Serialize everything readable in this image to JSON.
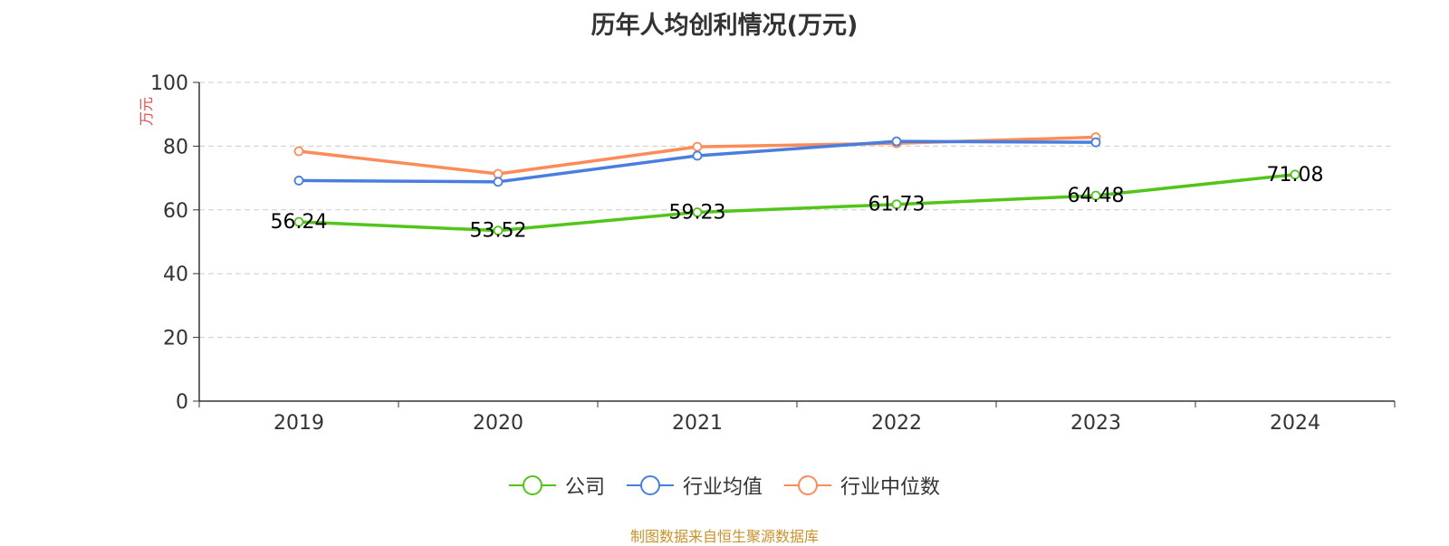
{
  "chart_data": {
    "type": "line",
    "title": "历年人均创利情况(万元)",
    "ylabel": "万元",
    "xlabel": "",
    "categories": [
      "2019",
      "2020",
      "2021",
      "2022",
      "2023",
      "2024"
    ],
    "ylim": [
      0,
      100
    ],
    "yticks": [
      0,
      20,
      40,
      60,
      80,
      100
    ],
    "grid": true,
    "legend_position": "bottom",
    "series": [
      {
        "name": "公司",
        "color": "#52c41a",
        "values": [
          56.24,
          53.52,
          59.23,
          61.73,
          64.48,
          71.08
        ],
        "labels": [
          "56.24",
          "53.52",
          "59.23",
          "61.73",
          "64.48",
          "71.08"
        ]
      },
      {
        "name": "行业均值",
        "color": "#4a7ede",
        "values": [
          69.2,
          68.8,
          77.0,
          81.5,
          81.2,
          null
        ]
      },
      {
        "name": "行业中位数",
        "color": "#fb8c5a",
        "values": [
          78.4,
          71.3,
          79.8,
          80.9,
          82.8,
          null
        ]
      }
    ]
  },
  "source": "制图数据来自恒生聚源数据库",
  "colors": {
    "axis": "#333333",
    "grid": "#cccccc",
    "ylabel": "#e64a4a",
    "source": "#c8922c"
  }
}
